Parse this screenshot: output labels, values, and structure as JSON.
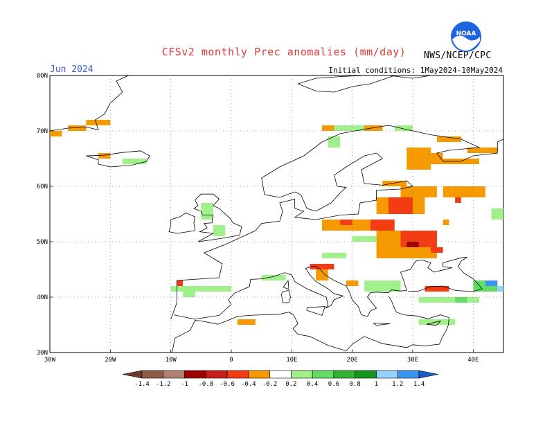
{
  "header": {
    "title": "CFSv2 monthly Prec anomalies (mm/day)",
    "month": "Jun 2024",
    "initial_conditions": "Initial conditions: 1May2024-10May2024",
    "agency": "NWS/NCEP/CPC",
    "logo_text": "NOAA"
  },
  "axes": {
    "lat_labels": [
      "80N",
      "70N",
      "60N",
      "50N",
      "40N",
      "30N"
    ],
    "lon_labels": [
      "30W",
      "20W",
      "10W",
      "0",
      "10E",
      "20E",
      "30E",
      "40E"
    ],
    "lat_range": [
      30,
      80
    ],
    "lon_range": [
      -30,
      45
    ]
  },
  "colorbar": {
    "labels": [
      "-1.4",
      "-1.2",
      "-1",
      "-0.8",
      "-0.6",
      "-0.4",
      "-0.2",
      "0.2",
      "0.4",
      "0.6",
      "0.8",
      "1",
      "1.2",
      "1.4"
    ],
    "colors": [
      "#6b3a2a",
      "#8f5a48",
      "#b08070",
      "#a00000",
      "#c81e1e",
      "#f23c14",
      "#f59a00",
      "#ffffff",
      "#a0f08c",
      "#64dc64",
      "#32b432",
      "#14961e",
      "#96d2fa",
      "#3c96f0",
      "#1e5ac8"
    ]
  },
  "chart_data": {
    "type": "heatmap",
    "title": "CFSv2 monthly Prec anomalies (mm/day)",
    "xlabel": "",
    "ylabel": "",
    "xlim": [
      -30,
      45
    ],
    "ylim": [
      30,
      80
    ],
    "projection": "equirectangular",
    "grid": true,
    "grid_spacing_deg": 10,
    "legend": "colorbar bottom",
    "color_levels": [
      -1.4,
      -1.2,
      -1,
      -0.8,
      -0.6,
      -0.4,
      -0.2,
      0.2,
      0.4,
      0.6,
      0.8,
      1,
      1.2,
      1.4
    ],
    "cell_size_deg": 1,
    "cells": [
      {
        "lon": -30,
        "lat": 69,
        "w": 2,
        "h": 1,
        "value": -0.3
      },
      {
        "lon": -27,
        "lat": 70,
        "w": 3,
        "h": 1,
        "value": -0.3
      },
      {
        "lon": -24,
        "lat": 71,
        "w": 4,
        "h": 1,
        "value": -0.3
      },
      {
        "lon": -22,
        "lat": 65,
        "w": 2,
        "h": 1,
        "value": -0.3
      },
      {
        "lon": -18,
        "lat": 64,
        "w": 4,
        "h": 1,
        "value": 0.3
      },
      {
        "lon": 15,
        "lat": 70,
        "w": 2,
        "h": 1,
        "value": -0.3
      },
      {
        "lon": 17,
        "lat": 70,
        "w": 6,
        "h": 1,
        "value": 0.3
      },
      {
        "lon": 22,
        "lat": 70,
        "w": 3,
        "h": 1,
        "value": -0.3
      },
      {
        "lon": 27,
        "lat": 70,
        "w": 3,
        "h": 1,
        "value": 0.3
      },
      {
        "lon": 34,
        "lat": 68,
        "w": 4,
        "h": 1,
        "value": -0.3
      },
      {
        "lon": 39,
        "lat": 66,
        "w": 5,
        "h": 1,
        "value": -0.3
      },
      {
        "lon": 16,
        "lat": 67,
        "w": 2,
        "h": 2,
        "value": 0.3
      },
      {
        "lon": 29,
        "lat": 63,
        "w": 4,
        "h": 4,
        "value": -0.3
      },
      {
        "lon": 33,
        "lat": 64,
        "w": 2,
        "h": 2,
        "value": -0.3
      },
      {
        "lon": 35,
        "lat": 64,
        "w": 6,
        "h": 1,
        "value": -0.3
      },
      {
        "lon": 25,
        "lat": 60,
        "w": 4,
        "h": 1,
        "value": -0.3
      },
      {
        "lon": 28,
        "lat": 58,
        "w": 6,
        "h": 2,
        "value": -0.3
      },
      {
        "lon": 24,
        "lat": 55,
        "w": 8,
        "h": 3,
        "value": -0.3
      },
      {
        "lon": 26,
        "lat": 55,
        "w": 4,
        "h": 3,
        "value": -0.5
      },
      {
        "lon": 35,
        "lat": 58,
        "w": 7,
        "h": 2,
        "value": -0.3
      },
      {
        "lon": 37,
        "lat": 57,
        "w": 1,
        "h": 1,
        "value": -0.5
      },
      {
        "lon": 15,
        "lat": 52,
        "w": 8,
        "h": 2,
        "value": -0.3
      },
      {
        "lon": 18,
        "lat": 53,
        "w": 2,
        "h": 1,
        "value": -0.5
      },
      {
        "lon": 23,
        "lat": 52,
        "w": 4,
        "h": 2,
        "value": -0.5
      },
      {
        "lon": 24,
        "lat": 47,
        "w": 10,
        "h": 5,
        "value": -0.3
      },
      {
        "lon": 28,
        "lat": 49,
        "w": 6,
        "h": 3,
        "value": -0.5
      },
      {
        "lon": 29,
        "lat": 49,
        "w": 2,
        "h": 1,
        "value": -0.9
      },
      {
        "lon": 31,
        "lat": 50,
        "w": 3,
        "h": 2,
        "value": -0.5
      },
      {
        "lon": 33,
        "lat": 48,
        "w": 2,
        "h": 1,
        "value": -0.5
      },
      {
        "lon": 13,
        "lat": 45,
        "w": 4,
        "h": 1,
        "value": -0.5
      },
      {
        "lon": 14,
        "lat": 43,
        "w": 2,
        "h": 2,
        "value": -0.3
      },
      {
        "lon": 19,
        "lat": 42,
        "w": 2,
        "h": 1,
        "value": -0.3
      },
      {
        "lon": -9,
        "lat": 42,
        "w": 1,
        "h": 1,
        "value": -0.5
      },
      {
        "lon": 1,
        "lat": 35,
        "w": 3,
        "h": 1,
        "value": -0.3
      },
      {
        "lon": 32,
        "lat": 41,
        "w": 4,
        "h": 1,
        "value": -0.5
      },
      {
        "lon": 35,
        "lat": 53,
        "w": 1,
        "h": 1,
        "value": -0.3
      },
      {
        "lon": -5,
        "lat": 54,
        "w": 2,
        "h": 3,
        "value": 0.4
      },
      {
        "lon": -3,
        "lat": 51,
        "w": 2,
        "h": 2,
        "value": 0.3
      },
      {
        "lon": -10,
        "lat": 41,
        "w": 10,
        "h": 1,
        "value": 0.3
      },
      {
        "lon": -8,
        "lat": 40,
        "w": 2,
        "h": 2,
        "value": 0.4
      },
      {
        "lon": 5,
        "lat": 43,
        "w": 4,
        "h": 1,
        "value": 0.3
      },
      {
        "lon": 15,
        "lat": 47,
        "w": 4,
        "h": 1,
        "value": 0.4
      },
      {
        "lon": 20,
        "lat": 50,
        "w": 4,
        "h": 1,
        "value": 0.3
      },
      {
        "lon": 22,
        "lat": 41,
        "w": 6,
        "h": 2,
        "value": 0.4
      },
      {
        "lon": 31,
        "lat": 39,
        "w": 10,
        "h": 1,
        "value": 0.3
      },
      {
        "lon": 37,
        "lat": 39,
        "w": 2,
        "h": 1,
        "value": 0.5
      },
      {
        "lon": 40,
        "lat": 41,
        "w": 4,
        "h": 2,
        "value": 0.6
      },
      {
        "lon": 42,
        "lat": 42,
        "w": 2,
        "h": 1,
        "value": 1.3
      },
      {
        "lon": 44,
        "lat": 41,
        "w": 1,
        "h": 1,
        "value": 1.1
      },
      {
        "lon": 43,
        "lat": 54,
        "w": 2,
        "h": 2,
        "value": 0.3
      },
      {
        "lon": 31,
        "lat": 35,
        "w": 6,
        "h": 1,
        "value": 0.4
      }
    ]
  }
}
